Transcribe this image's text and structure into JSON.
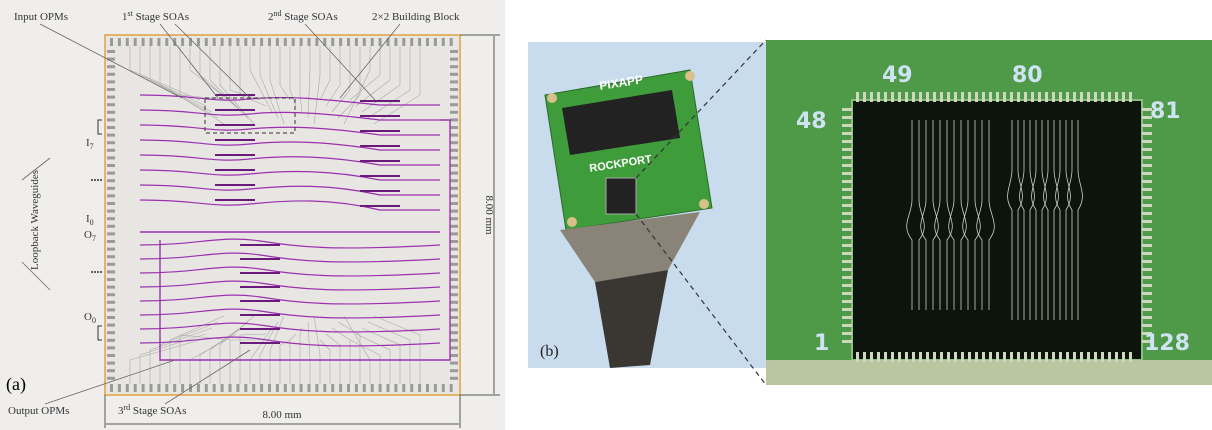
{
  "panel_a": {
    "label": "(a)",
    "input_opms": "Input OPMs",
    "stage1": {
      "num": "1",
      "sup": "st",
      "text": " Stage SOAs"
    },
    "stage2": {
      "num": "2",
      "sup": "nd",
      "text": " Stage SOAs"
    },
    "building_block": "2×2 Building Block",
    "loopback": "Loopback Waveguides",
    "ports": [
      {
        "letter": "I",
        "sub": "7"
      },
      {
        "letter": "I",
        "sub": "0"
      },
      {
        "letter": "O",
        "sub": "7"
      },
      {
        "letter": "O",
        "sub": "0"
      }
    ],
    "output_opms": "Output OPMs",
    "stage3": {
      "num": "3",
      "sup": "rd",
      "text": " Stage SOAs"
    },
    "height_dim": "8.00 mm",
    "width_dim": "8.00 mm"
  },
  "panel_b": {
    "label": "(b)",
    "brand": "PIXAPP",
    "maker": "ROCKPORT"
  },
  "zoom": {
    "pins": [
      "49",
      "80",
      "48",
      "81",
      "1",
      "128"
    ]
  }
}
